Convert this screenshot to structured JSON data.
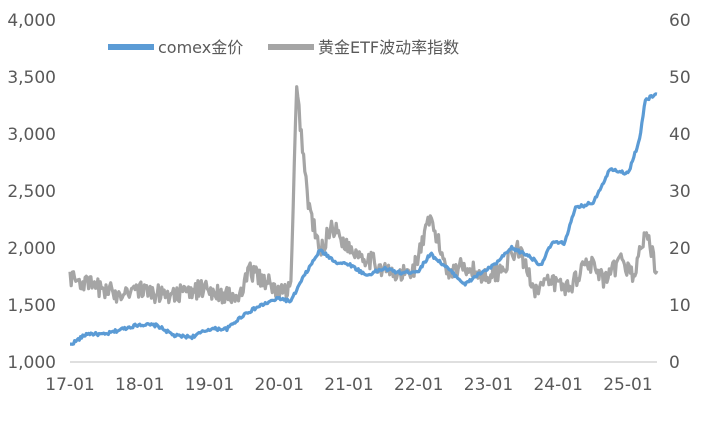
{
  "chart_data": {
    "type": "line",
    "title": "",
    "xlabel": "",
    "ylabel": "",
    "y2label": "",
    "x_ticks": [
      "17-01",
      "18-01",
      "19-01",
      "20-01",
      "21-01",
      "22-01",
      "23-01",
      "24-01",
      "25-01"
    ],
    "x_range": [
      "2017-01",
      "2025-06"
    ],
    "ylim": [
      1000,
      4000
    ],
    "y_ticks": [
      "1,000",
      "1,500",
      "2,000",
      "2,500",
      "3,000",
      "3,500",
      "4,000"
    ],
    "y2lim": [
      0,
      60
    ],
    "y2_ticks": [
      "0",
      "10",
      "20",
      "30",
      "40",
      "50",
      "60"
    ],
    "grid": false,
    "legend_position": "top-left",
    "series": [
      {
        "name": "comex金价",
        "axis": "left",
        "color": "#5B9BD5",
        "x": [
          "2017-01",
          "2017-04",
          "2017-07",
          "2017-10",
          "2018-01",
          "2018-04",
          "2018-07",
          "2018-10",
          "2019-01",
          "2019-04",
          "2019-07",
          "2019-10",
          "2020-01",
          "2020-03",
          "2020-05",
          "2020-08",
          "2020-11",
          "2021-01",
          "2021-04",
          "2021-07",
          "2021-10",
          "2022-01",
          "2022-03",
          "2022-06",
          "2022-09",
          "2022-11",
          "2023-02",
          "2023-05",
          "2023-08",
          "2023-10",
          "2023-12",
          "2024-02",
          "2024-04",
          "2024-07",
          "2024-10",
          "2025-01",
          "2025-03",
          "2025-04",
          "2025-06"
        ],
        "values": [
          1150,
          1250,
          1240,
          1290,
          1330,
          1320,
          1230,
          1220,
          1290,
          1290,
          1420,
          1500,
          1560,
          1530,
          1730,
          1980,
          1870,
          1860,
          1760,
          1820,
          1780,
          1800,
          1950,
          1820,
          1680,
          1760,
          1850,
          2000,
          1930,
          1850,
          2050,
          2040,
          2350,
          2400,
          2700,
          2650,
          2950,
          3300,
          3350
        ]
      },
      {
        "name": "黄金ETF波动率指数",
        "axis": "right",
        "color": "#A5A5A5",
        "x": [
          "2017-01",
          "2017-03",
          "2017-06",
          "2017-09",
          "2017-12",
          "2018-03",
          "2018-06",
          "2018-09",
          "2018-12",
          "2019-03",
          "2019-06",
          "2019-08",
          "2019-11",
          "2020-01",
          "2020-03",
          "2020-04",
          "2020-06",
          "2020-08",
          "2020-10",
          "2021-01",
          "2021-03",
          "2021-06",
          "2021-09",
          "2021-12",
          "2022-03",
          "2022-06",
          "2022-09",
          "2022-12",
          "2023-03",
          "2023-06",
          "2023-09",
          "2023-12",
          "2024-03",
          "2024-06",
          "2024-09",
          "2024-12",
          "2025-02",
          "2025-04",
          "2025-06"
        ],
        "values": [
          15,
          14,
          13,
          12,
          13,
          12,
          12,
          12,
          13,
          12,
          11,
          16,
          14,
          12,
          13,
          48,
          28,
          19,
          24,
          20,
          19,
          17,
          15,
          16,
          25,
          16,
          17,
          15,
          16,
          20,
          13,
          14,
          13,
          18,
          14,
          18,
          15,
          23,
          16
        ]
      }
    ]
  }
}
